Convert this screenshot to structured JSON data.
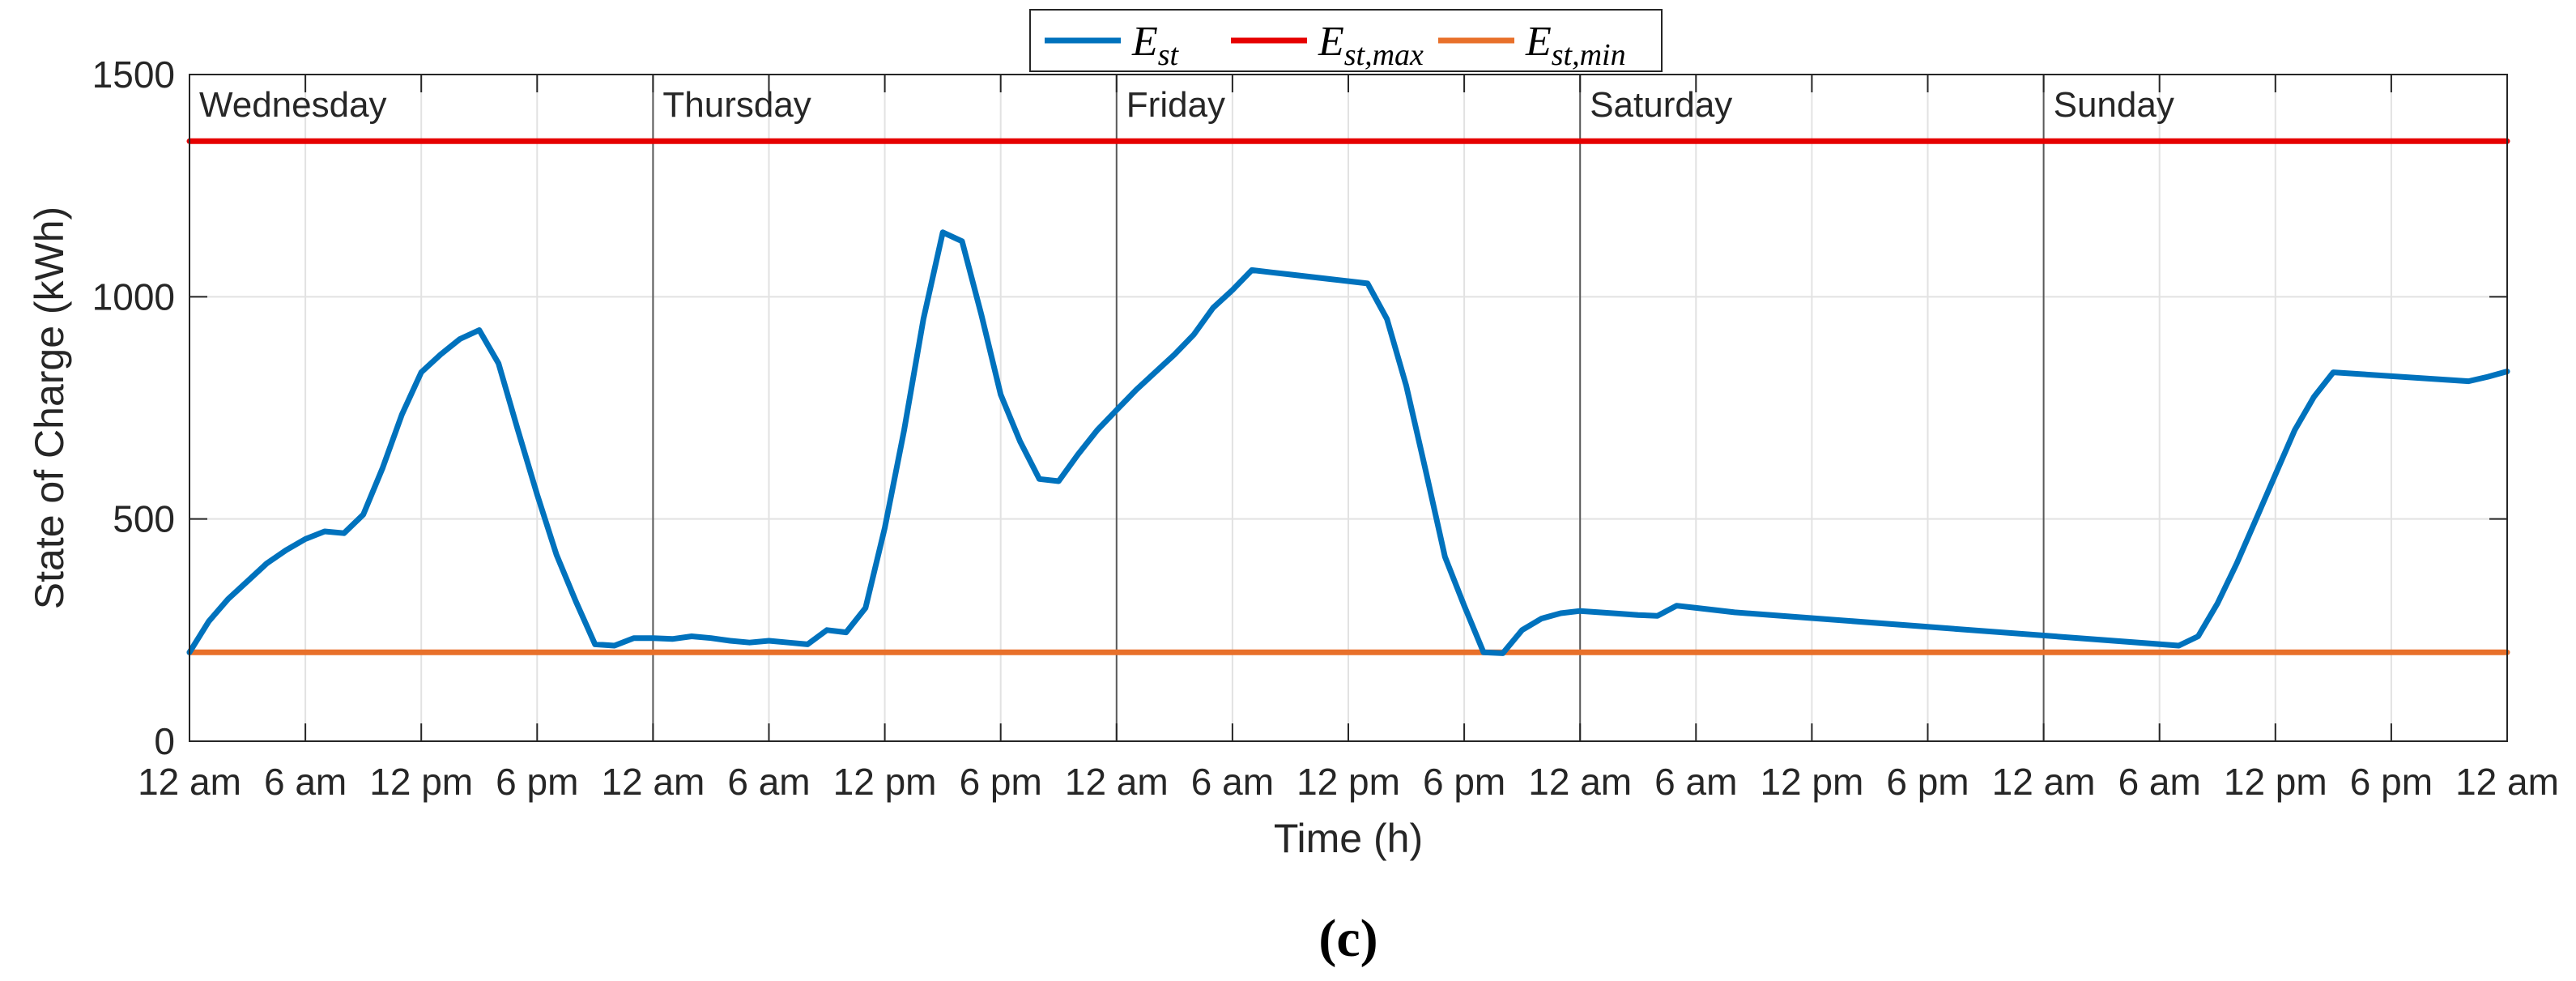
{
  "chart_data": {
    "type": "line",
    "xlabel": "Time (h)",
    "ylabel": "State of Charge (kWh)",
    "ylim": [
      0,
      1500
    ],
    "yticks": [
      0,
      500,
      1000,
      1500
    ],
    "xlim": [
      0,
      120
    ],
    "xtick_hours": [
      0,
      6,
      12,
      18,
      24,
      30,
      36,
      42,
      48,
      54,
      60,
      66,
      72,
      78,
      84,
      90,
      96,
      102,
      108,
      114,
      120
    ],
    "xtick_labels": [
      "12 am",
      "6 am",
      "12 pm",
      "6 pm",
      "12 am",
      "6 am",
      "12 pm",
      "6 pm",
      "12 am",
      "6 am",
      "12 pm",
      "6 pm",
      "12 am",
      "6 am",
      "12 pm",
      "6 pm",
      "12 am",
      "6 am",
      "12 pm",
      "6 pm",
      "12 am"
    ],
    "days": [
      {
        "label": "Wednesday",
        "start_hour": 0
      },
      {
        "label": "Thursday",
        "start_hour": 24
      },
      {
        "label": "Friday",
        "start_hour": 48
      },
      {
        "label": "Saturday",
        "start_hour": 72
      },
      {
        "label": "Sunday",
        "start_hour": 96
      }
    ],
    "grid": true,
    "legend_position": "top-center outside",
    "caption": "(c)",
    "series": [
      {
        "name": "E",
        "sub": "st",
        "color": "#0072BD",
        "x": [
          0,
          1,
          2,
          3,
          4,
          5,
          6,
          7,
          8,
          9,
          10,
          11,
          12,
          13,
          14,
          15,
          16,
          17,
          18,
          19,
          20,
          21,
          22,
          23,
          24,
          25,
          26,
          27,
          28,
          29,
          30,
          31,
          32,
          33,
          34,
          35,
          36,
          37,
          38,
          39,
          40,
          41,
          42,
          43,
          44,
          45,
          46,
          47,
          48,
          49,
          50,
          51,
          52,
          53,
          54,
          55,
          56,
          57,
          58,
          59,
          60,
          61,
          62,
          63,
          64,
          65,
          66,
          67,
          68,
          69,
          70,
          71,
          72,
          73,
          74,
          75,
          76,
          77,
          78,
          79,
          80,
          103,
          104,
          105,
          106,
          107,
          108,
          109,
          110,
          111,
          118,
          119,
          120
        ],
        "y": [
          200,
          270,
          320,
          360,
          400,
          430,
          455,
          472,
          468,
          510,
          615,
          735,
          830,
          870,
          905,
          925,
          850,
          700,
          555,
          420,
          315,
          218,
          215,
          232,
          232,
          230,
          236,
          232,
          226,
          222,
          226,
          222,
          218,
          250,
          245,
          300,
          480,
          700,
          950,
          1145,
          1125,
          960,
          780,
          675,
          590,
          585,
          645,
          700,
          745,
          790,
          830,
          870,
          915,
          975,
          1015,
          1060,
          1055,
          1050,
          1045,
          1040,
          1035,
          1030,
          950,
          800,
          610,
          415,
          305,
          200,
          198,
          250,
          276,
          288,
          293,
          290,
          287,
          284,
          282,
          305,
          300,
          295,
          290,
          215,
          236,
          310,
          400,
          500,
          600,
          700,
          775,
          830,
          810,
          820,
          832
        ]
      },
      {
        "name": "E",
        "sub": "st,max",
        "color": "#E60000",
        "x": [
          0,
          120
        ],
        "y": [
          1350,
          1350
        ]
      },
      {
        "name": "E",
        "sub": "st,min",
        "color": "#E8702A",
        "x": [
          0,
          120
        ],
        "y": [
          200,
          200
        ]
      }
    ]
  }
}
